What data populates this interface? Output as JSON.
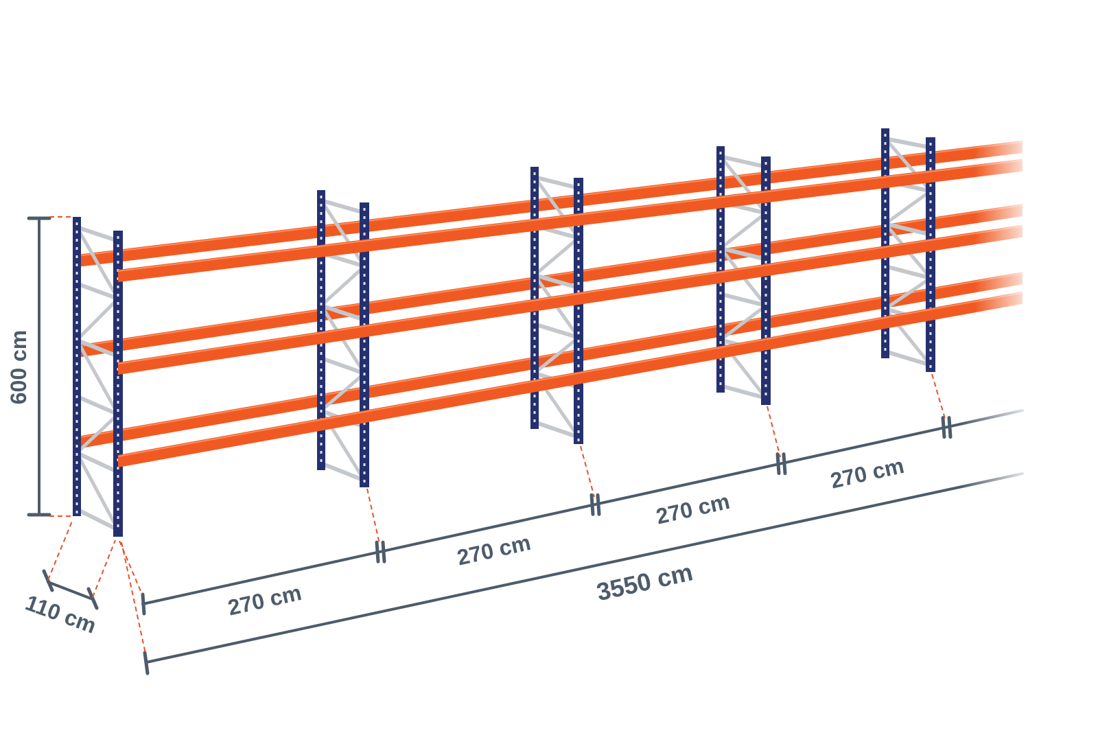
{
  "colors": {
    "upright": "#25306e",
    "beam": "#f05a22",
    "brace": "#c4c8cc",
    "dimension": "#4d5b6b",
    "guide": "#e8502a"
  },
  "dimensions": {
    "height": "600 cm",
    "depth": "110 cm",
    "bay_widths": [
      "270 cm",
      "270 cm",
      "270 cm",
      "270 cm"
    ],
    "total_length": "3550 cm"
  }
}
